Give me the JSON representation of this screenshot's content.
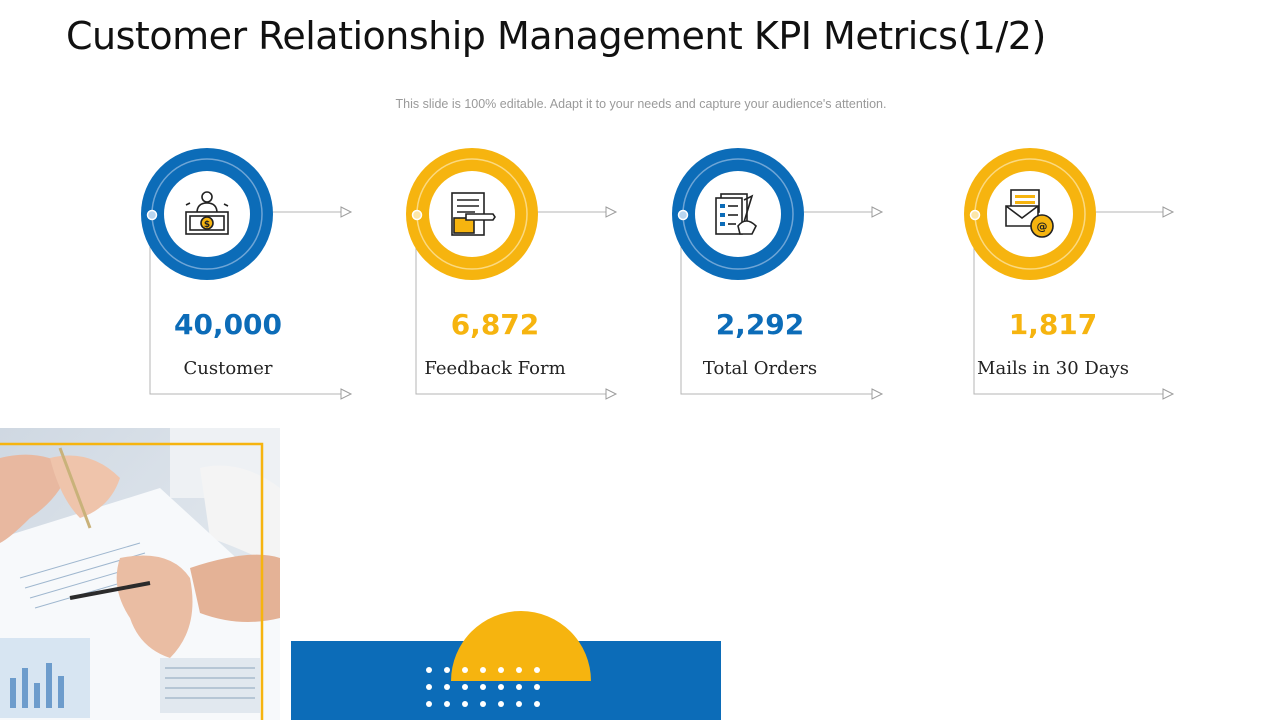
{
  "header": {
    "title": "Customer Relationship Management KPI Metrics(1/2)",
    "subtitle": "This slide is 100% editable. Adapt it to your needs and capture your audience's attention."
  },
  "kpis": [
    {
      "value": "40,000",
      "label": "Customer",
      "color": "#0c6cb8",
      "icon": "banker-cash-icon"
    },
    {
      "value": "6,872",
      "label": "Feedback Form",
      "color": "#f6b40f",
      "icon": "feedback-form-icon"
    },
    {
      "value": "2,292",
      "label": "Total Orders",
      "color": "#0c6cb8",
      "icon": "order-checklist-icon"
    },
    {
      "value": "1,817",
      "label": "Mails in 30 Days",
      "color": "#f6b40f",
      "icon": "email-at-icon"
    }
  ],
  "colors": {
    "accent_blue": "#0c6cb8",
    "accent_yellow": "#f6b40f",
    "connector": "#b5b5b5"
  }
}
